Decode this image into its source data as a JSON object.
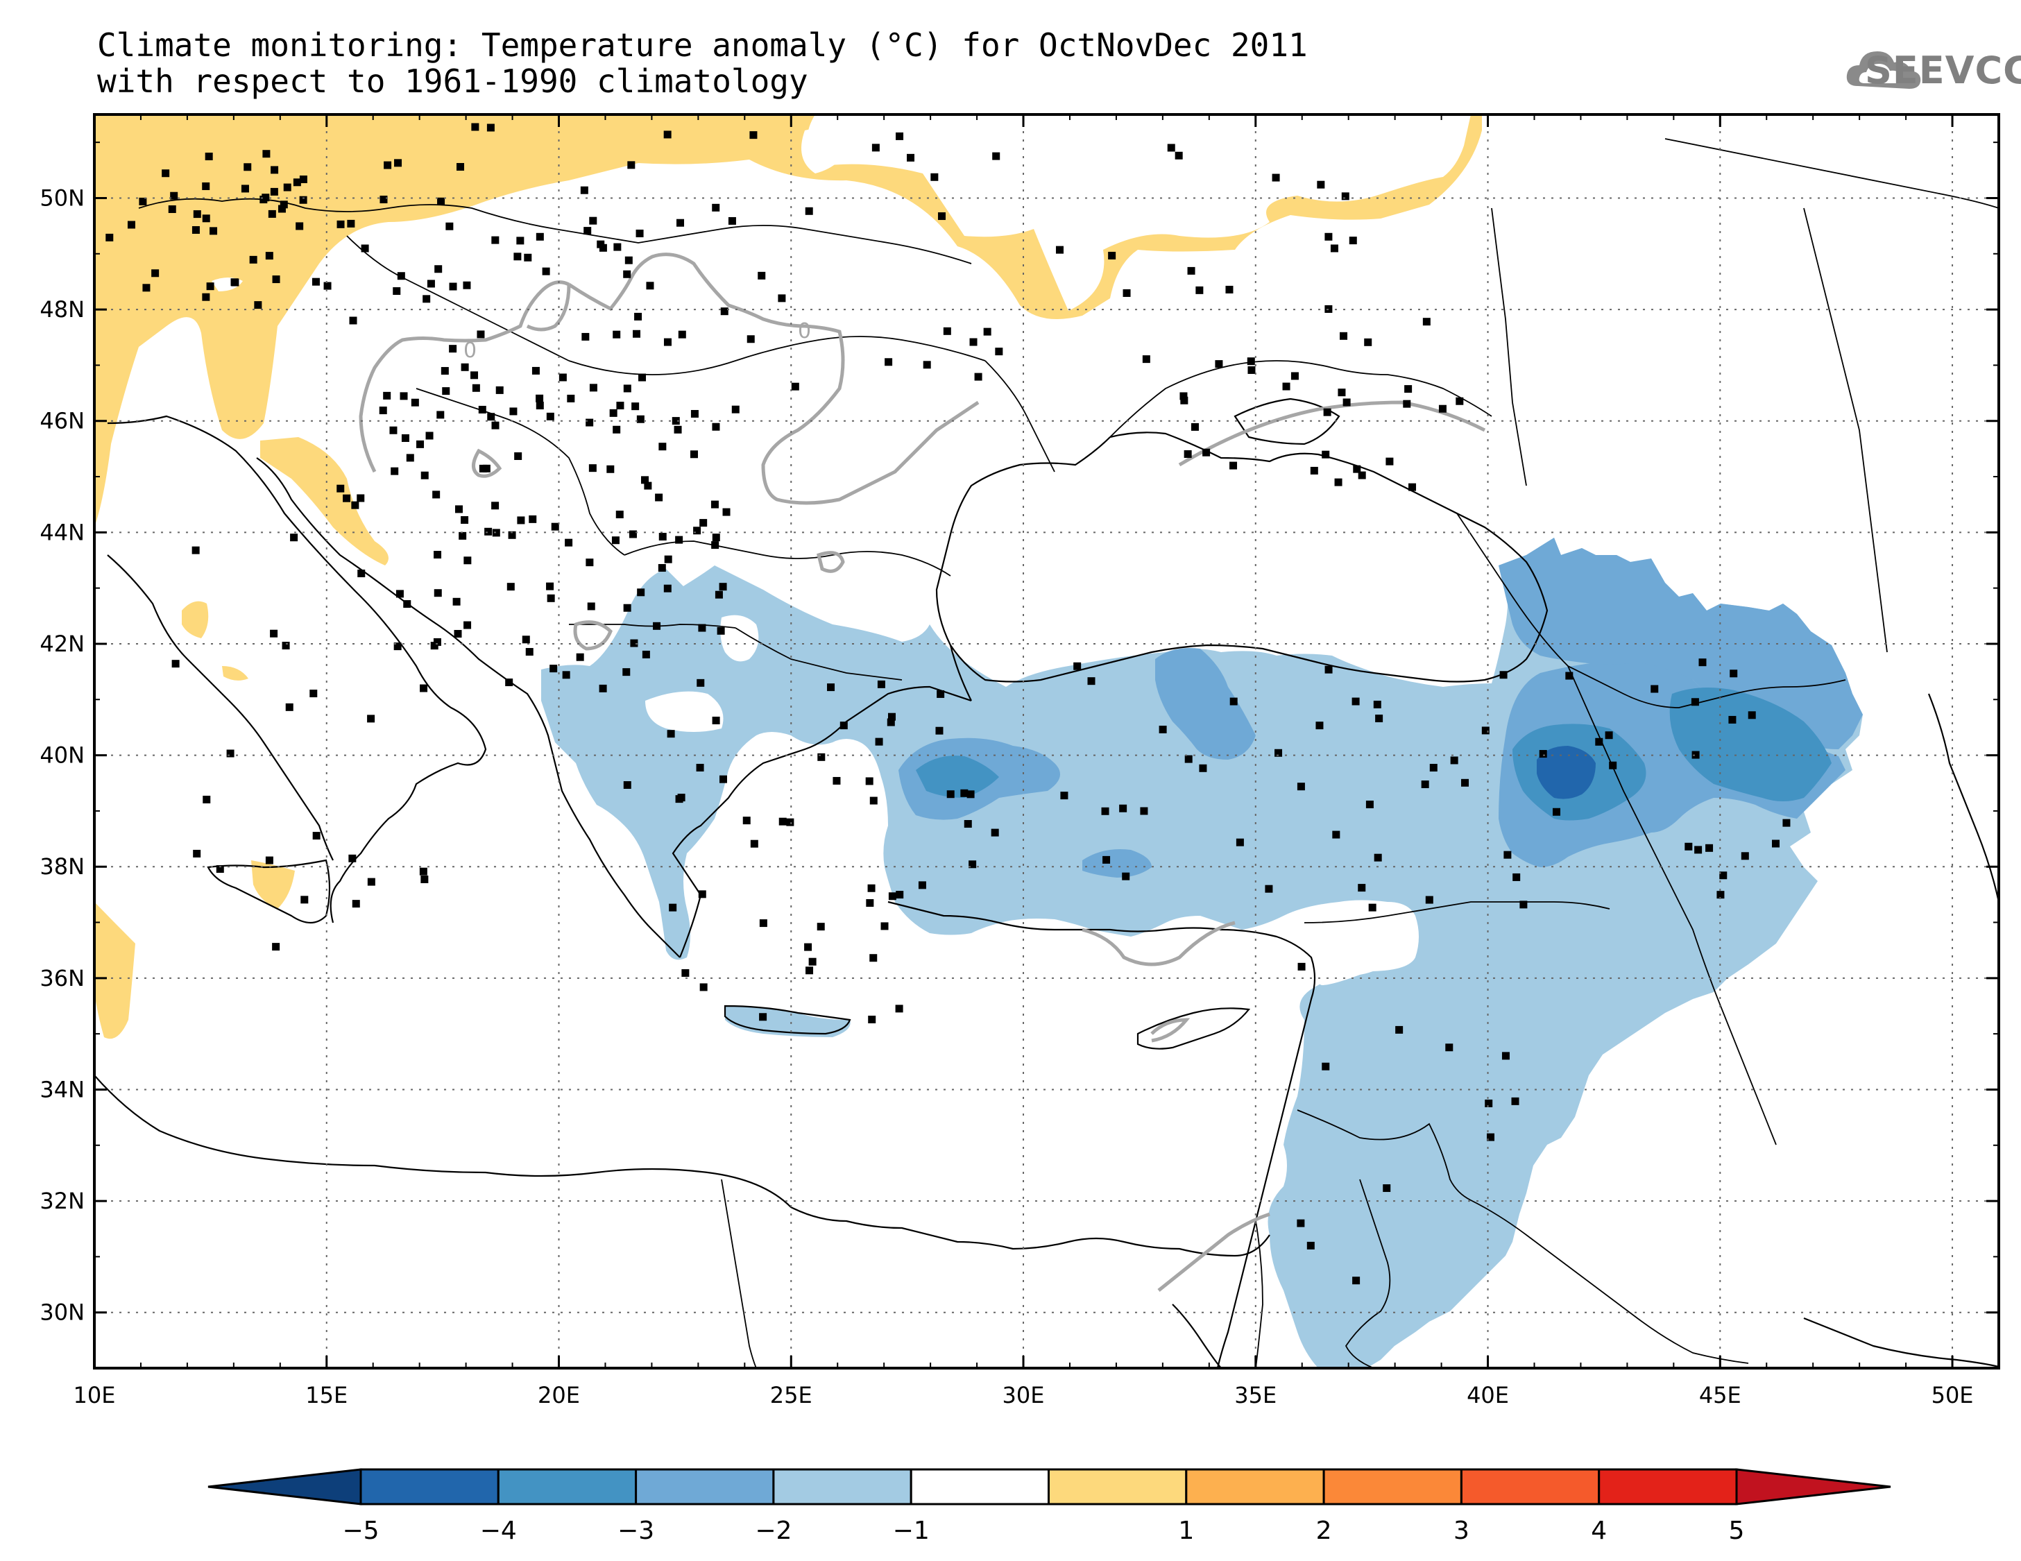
{
  "title": {
    "line1": "Climate monitoring: Temperature anomaly (°C) for OctNovDec 2011",
    "line2": "with respect to 1961-1990 climatology"
  },
  "logo": {
    "text": "SEEVCCC",
    "icon": "cloud-icon"
  },
  "map": {
    "lon_range": [
      10,
      51
    ],
    "lat_range": [
      29,
      51.5
    ],
    "lon_labels": [
      "10E",
      "15E",
      "20E",
      "25E",
      "30E",
      "35E",
      "40E",
      "45E",
      "50E"
    ],
    "lat_labels": [
      "30N",
      "32N",
      "34N",
      "36N",
      "38N",
      "40N",
      "42N",
      "44N",
      "46N",
      "48N",
      "50N"
    ],
    "contour_label": "0"
  },
  "legend": {
    "ticks": [
      "-5",
      "-4",
      "-3",
      "-2",
      "-1",
      "1",
      "2",
      "3",
      "4",
      "5"
    ],
    "colors": [
      "#0d3f7a",
      "#2166ac",
      "#4393c3",
      "#6fa9d6",
      "#a3cbe3",
      "#ffffff",
      "#fdd97c",
      "#fdb04f",
      "#fb8838",
      "#f55a2b",
      "#e32219",
      "#c1121f"
    ]
  }
}
